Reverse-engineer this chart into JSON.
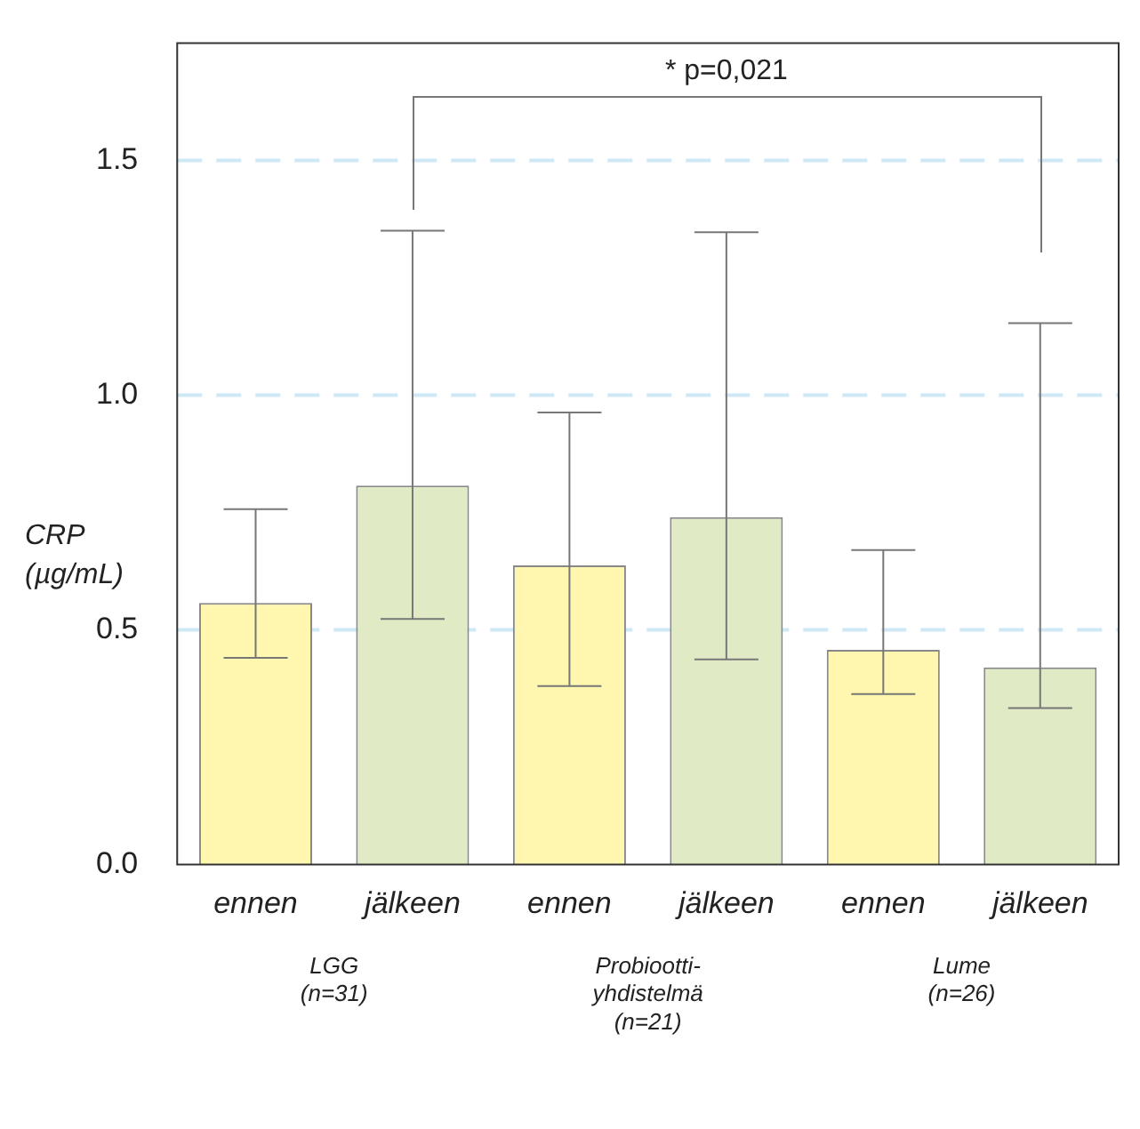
{
  "chart_data": {
    "type": "bar",
    "ylabel": "CRP\n(µg/mL)",
    "categories": [
      "LGG\n(n=31)",
      "Probiootti-\nyhdistelmä\n(n=21)",
      "Lume\n(n=26)"
    ],
    "series": [
      {
        "name": "ennen",
        "color": "#fff6b0",
        "values": [
          0.557,
          0.637,
          0.457
        ],
        "errors": [
          [
            0.44,
            0.757
          ],
          [
            0.38,
            0.963
          ],
          [
            0.363,
            0.67
          ]
        ]
      },
      {
        "name": "jälkeen",
        "color": "#e0ebc6",
        "values": [
          0.807,
          0.74,
          0.42
        ],
        "errors": [
          [
            0.523,
            1.35
          ],
          [
            0.437,
            1.347
          ],
          [
            0.333,
            1.153
          ]
        ]
      }
    ],
    "ylim": [
      0,
      1.75
    ],
    "yticks": [
      {
        "value": 0,
        "label": "0.0"
      },
      0.5,
      {
        "value": 1,
        "label": "1.0"
      },
      1.5
    ],
    "grid": "y",
    "legend": false,
    "annotations": [
      "* p=0,021"
    ]
  }
}
